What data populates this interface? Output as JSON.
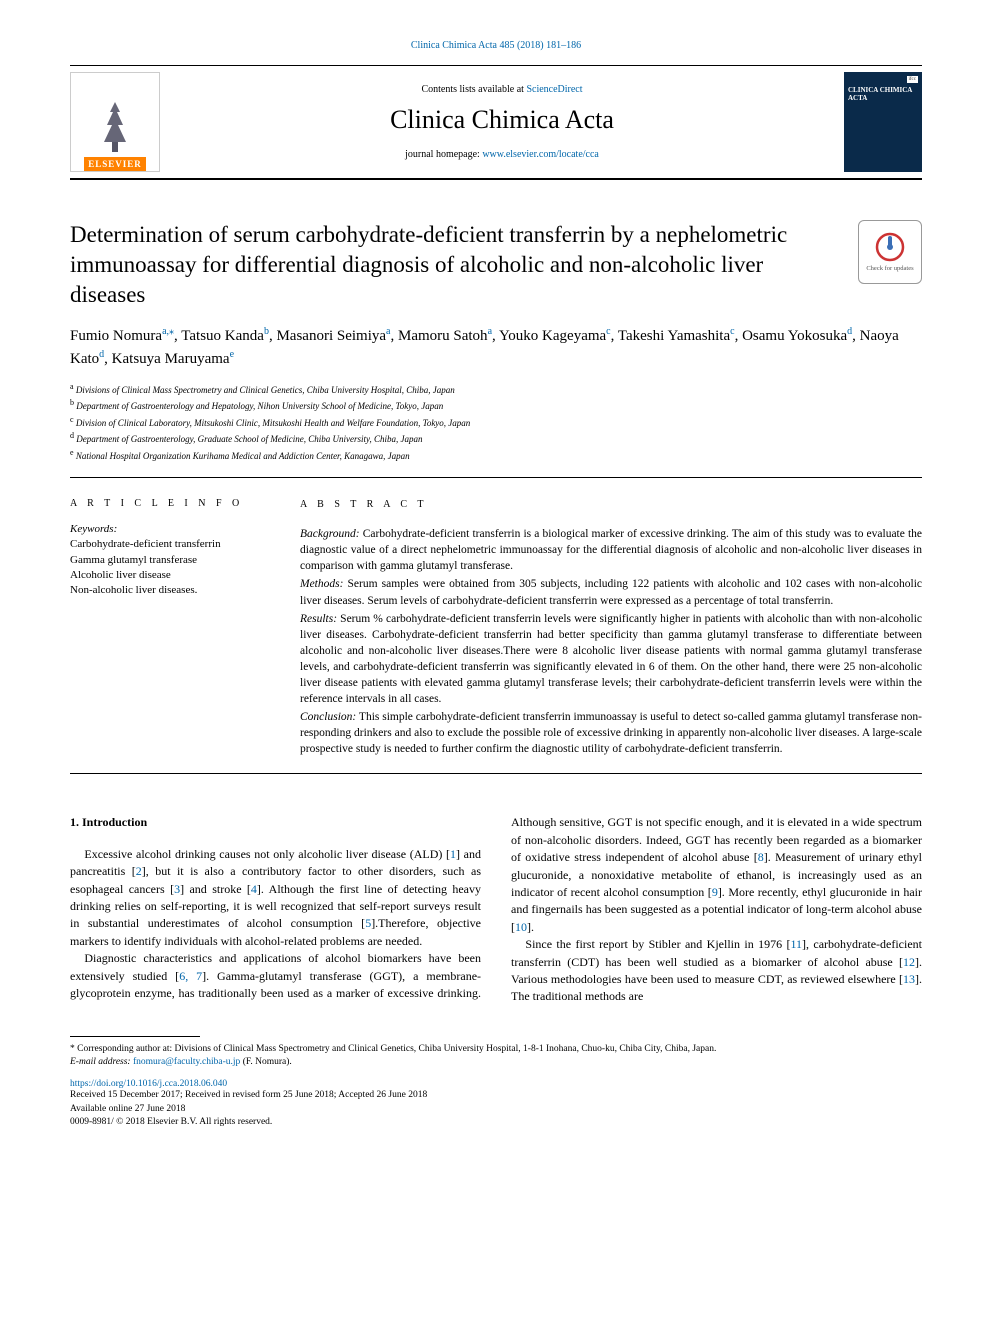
{
  "header": {
    "citation": "Clinica Chimica Acta 485 (2018) 181–186",
    "contents_prefix": "Contents lists available at ",
    "contents_link": "ScienceDirect",
    "journal_title": "Clinica Chimica Acta",
    "homepage_prefix": "journal homepage: ",
    "homepage_link": "www.elsevier.com/locate/cca",
    "elsevier_label": "ELSEVIER",
    "cover_ifcc": "ifcc",
    "cover_title": "CLINICA CHIMICA ACTA"
  },
  "article": {
    "title": "Determination of serum carbohydrate-deficient transferrin by a nephelometric immunoassay for differential diagnosis of alcoholic and non-alcoholic liver diseases",
    "check_updates": "Check for updates",
    "authors_html": "Fumio Nomura<sup>a,*</sup>, Tatsuo Kanda<sup>b</sup>, Masanori Seimiya<sup>a</sup>, Mamoru Satoh<sup>a</sup>, Youko Kageyama<sup>c</sup>, Takeshi Yamashita<sup>c</sup>, Osamu Yokosuka<sup>d</sup>, Naoya Kato<sup>d</sup>, Katsuya Maruyama<sup>e</sup>",
    "affiliations": [
      {
        "sup": "a",
        "text": "Divisions of Clinical Mass Spectrometry and Clinical Genetics, Chiba University Hospital, Chiba, Japan"
      },
      {
        "sup": "b",
        "text": "Department of Gastroenterology and Hepatology, Nihon University School of Medicine, Tokyo, Japan"
      },
      {
        "sup": "c",
        "text": "Division of Clinical Laboratory, Mitsukoshi Clinic, Mitsukoshi Health and Welfare Foundation, Tokyo, Japan"
      },
      {
        "sup": "d",
        "text": "Department of Gastroenterology, Graduate School of Medicine, Chiba University, Chiba, Japan"
      },
      {
        "sup": "e",
        "text": "National Hospital Organization Kurihama Medical and Addiction Center, Kanagawa, Japan"
      }
    ]
  },
  "info": {
    "label": "A R T I C L E  I N F O",
    "keywords_label": "Keywords:",
    "keywords": [
      "Carbohydrate-deficient transferrin",
      "Gamma glutamyl transferase",
      "Alcoholic liver disease",
      "Non-alcoholic liver diseases."
    ]
  },
  "abstract": {
    "label": "A B S T R A C T",
    "background_label": "Background:",
    "background": "Carbohydrate-deficient transferrin is a biological marker of excessive drinking. The aim of this study was to evaluate the diagnostic value of a direct nephelometric immunoassay for the differential diagnosis of alcoholic and non-alcoholic liver diseases in comparison with gamma glutamyl transferase.",
    "methods_label": "Methods:",
    "methods": "Serum samples were obtained from 305 subjects, including 122 patients with alcoholic and 102 cases with non-alcoholic liver diseases. Serum levels of carbohydrate-deficient transferrin were expressed as a percentage of total transferrin.",
    "results_label": "Results:",
    "results": "Serum % carbohydrate-deficient transferrin levels were significantly higher in patients with alcoholic than with non-alcoholic liver diseases. Carbohydrate-deficient transferrin had better specificity than gamma glutamyl transferase to differentiate between alcoholic and non-alcoholic liver diseases.There were 8 alcoholic liver disease patients with normal gamma glutamyl transferase levels, and carbohydrate-deficient transferrin was significantly elevated in 6 of them. On the other hand, there were 25 non-alcoholic liver disease patients with elevated gamma glutamyl transferase levels; their carbohydrate-deficient transferrin levels were within the reference intervals in all cases.",
    "conclusion_label": "Conclusion:",
    "conclusion": "This simple carbohydrate-deficient transferrin immunoassay is useful to detect so-called gamma glutamyl transferase non-responding drinkers and also to exclude the possible role of excessive drinking in apparently non-alcoholic liver diseases. A large-scale prospective study is needed to further confirm the diagnostic utility of carbohydrate-deficient transferrin."
  },
  "body": {
    "intro_title": "1. Introduction",
    "p1": "Excessive alcohol drinking causes not only alcoholic liver disease (ALD) [1] and pancreatitis [2], but it is also a contributory factor to other disorders, such as esophageal cancers [3] and stroke [4]. Although the first line of detecting heavy drinking relies on self-reporting, it is well recognized that self-report surveys result in substantial underestimates of alcohol consumption [5].Therefore, objective markers to identify individuals with alcohol-related problems are needed.",
    "p2": "Diagnostic characteristics and applications of alcohol biomarkers have been extensively studied [6, 7]. Gamma-glutamyl transferase (GGT), a membrane-glycoprotein enzyme, has traditionally been used as a marker of excessive drinking. Although sensitive, GGT is not specific enough, and it is elevated in a wide spectrum of non-alcoholic disorders. Indeed, GGT has recently been regarded as a biomarker of oxidative stress independent of alcohol abuse [8]. Measurement of urinary ethyl glucuronide, a nonoxidative metabolite of ethanol, is increasingly used as an indicator of recent alcohol consumption [9]. More recently, ethyl glucuronide in hair and fingernails has been suggested as a potential indicator of long-term alcohol abuse [10].",
    "p3": "Since the first report by Stibler and Kjellin in 1976 [11], carbohydrate-deficient transferrin (CDT) has been well studied as a biomarker of alcohol abuse [12]. Various methodologies have been used to measure CDT, as reviewed elsewhere [13]. The traditional methods are"
  },
  "footer": {
    "corresponding": "* Corresponding author at: Divisions of Clinical Mass Spectrometry and Clinical Genetics, Chiba University Hospital, 1-8-1 Inohana, Chuo-ku, Chiba City, Chiba, Japan.",
    "email_label": "E-mail address:",
    "email": "fnomura@faculty.chiba-u.jp",
    "email_suffix": "(F. Nomura).",
    "doi": "https://doi.org/10.1016/j.cca.2018.06.040",
    "history": "Received 15 December 2017; Received in revised form 25 June 2018; Accepted 26 June 2018",
    "available": "Available online 27 June 2018",
    "copyright": "0009-8981/ © 2018 Elsevier B.V. All rights reserved."
  },
  "colors": {
    "link": "#0066aa",
    "elsevier_orange": "#ff8200",
    "cover_bg": "#0a2a4a",
    "check_red": "#cc3333",
    "check_blue": "#3b6fb6"
  }
}
